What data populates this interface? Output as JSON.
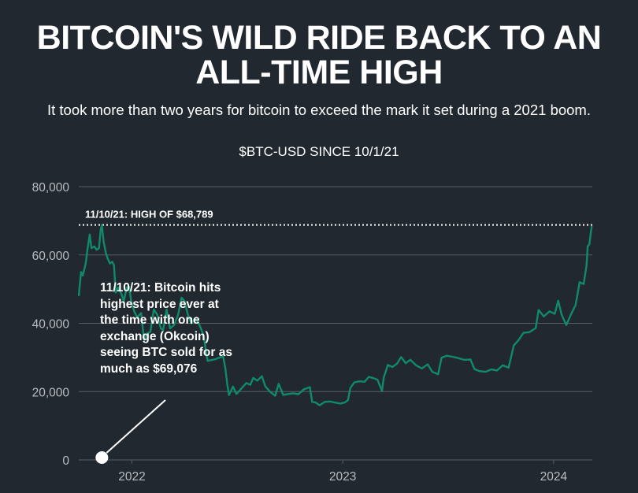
{
  "header": {
    "title": "BITCOIN'S WILD RIDE BACK TO AN ALL-TIME HIGH",
    "subtitle": "It took more than two years for bitcoin to exceed the mark it set during a 2021 boom.",
    "series_label": "$BTC-USD SINCE 10/1/21"
  },
  "colors": {
    "background": "#222830",
    "line": "#0f8a6c",
    "grid": "#5a5f66",
    "text": "#ffffff",
    "axis_text": "#b9bcc0"
  },
  "chart_data": {
    "type": "line",
    "title": "BITCOIN'S WILD RIDE BACK TO AN ALL-TIME HIGH",
    "subtitle": "$BTC-USD SINCE 10/1/21",
    "xlabel": "",
    "ylabel": "",
    "ylim": [
      0,
      80000
    ],
    "xlim": [
      "2021-10-01",
      "2024-03-08"
    ],
    "y_ticks": [
      "0",
      "20,000",
      "40,000",
      "60,000",
      "80,000"
    ],
    "y_tick_values": [
      0,
      20000,
      40000,
      60000,
      80000
    ],
    "x_ticks": [
      "2022",
      "2023",
      "2024"
    ],
    "x_tick_values": [
      "2022-01-01",
      "2023-01-01",
      "2024-01-01"
    ],
    "grid": true,
    "series": [
      {
        "name": "",
        "points": [
          [
            "2021-10-01",
            48000
          ],
          [
            "2021-10-05",
            55000
          ],
          [
            "2021-10-08",
            54000
          ],
          [
            "2021-10-13",
            57500
          ],
          [
            "2021-10-16",
            61500
          ],
          [
            "2021-10-20",
            66000
          ],
          [
            "2021-10-23",
            62000
          ],
          [
            "2021-10-28",
            62500
          ],
          [
            "2021-11-01",
            61500
          ],
          [
            "2021-11-05",
            62000
          ],
          [
            "2021-11-08",
            67500
          ],
          [
            "2021-11-10",
            68789
          ],
          [
            "2021-11-13",
            64000
          ],
          [
            "2021-11-17",
            60500
          ],
          [
            "2021-11-20",
            59000
          ],
          [
            "2021-11-24",
            57500
          ],
          [
            "2021-11-28",
            58000
          ],
          [
            "2021-12-01",
            57000
          ],
          [
            "2021-12-04",
            49000
          ],
          [
            "2021-12-08",
            50500
          ],
          [
            "2021-12-14",
            48500
          ],
          [
            "2021-12-18",
            46500
          ],
          [
            "2021-12-23",
            50500
          ],
          [
            "2021-12-27",
            50700
          ],
          [
            "2021-12-31",
            46300
          ],
          [
            "2022-01-05",
            43500
          ],
          [
            "2022-01-10",
            41800
          ],
          [
            "2022-01-17",
            43000
          ],
          [
            "2022-01-22",
            35000
          ],
          [
            "2022-01-27",
            37000
          ],
          [
            "2022-02-02",
            37500
          ],
          [
            "2022-02-08",
            44000
          ],
          [
            "2022-02-14",
            42500
          ],
          [
            "2022-02-20",
            38500
          ],
          [
            "2022-02-24",
            38000
          ],
          [
            "2022-03-02",
            44000
          ],
          [
            "2022-03-08",
            38500
          ],
          [
            "2022-03-15",
            39500
          ],
          [
            "2022-03-22",
            42500
          ],
          [
            "2022-03-28",
            47500
          ],
          [
            "2022-04-02",
            46500
          ],
          [
            "2022-04-08",
            42500
          ],
          [
            "2022-04-14",
            40000
          ],
          [
            "2022-04-21",
            41500
          ],
          [
            "2022-04-28",
            39500
          ],
          [
            "2022-05-05",
            36500
          ],
          [
            "2022-05-10",
            31000
          ],
          [
            "2022-05-12",
            29000
          ],
          [
            "2022-05-18",
            29200
          ],
          [
            "2022-05-26",
            29500
          ],
          [
            "2022-06-02",
            30000
          ],
          [
            "2022-06-08",
            30200
          ],
          [
            "2022-06-12",
            26500
          ],
          [
            "2022-06-15",
            22200
          ],
          [
            "2022-06-18",
            19000
          ],
          [
            "2022-06-25",
            21500
          ],
          [
            "2022-07-01",
            19300
          ],
          [
            "2022-07-10",
            21000
          ],
          [
            "2022-07-18",
            22500
          ],
          [
            "2022-07-25",
            22000
          ],
          [
            "2022-07-30",
            24000
          ],
          [
            "2022-08-06",
            23200
          ],
          [
            "2022-08-14",
            24500
          ],
          [
            "2022-08-20",
            21500
          ],
          [
            "2022-08-28",
            20000
          ],
          [
            "2022-09-06",
            18800
          ],
          [
            "2022-09-12",
            22300
          ],
          [
            "2022-09-20",
            19000
          ],
          [
            "2022-09-28",
            19300
          ],
          [
            "2022-10-08",
            19500
          ],
          [
            "2022-10-16",
            19200
          ],
          [
            "2022-10-26",
            20700
          ],
          [
            "2022-11-05",
            21300
          ],
          [
            "2022-11-09",
            17000
          ],
          [
            "2022-11-15",
            16800
          ],
          [
            "2022-11-22",
            16000
          ],
          [
            "2022-12-01",
            17000
          ],
          [
            "2022-12-10",
            17100
          ],
          [
            "2022-12-18",
            16800
          ],
          [
            "2022-12-28",
            16500
          ],
          [
            "2023-01-05",
            16850
          ],
          [
            "2023-01-10",
            17500
          ],
          [
            "2023-01-14",
            21000
          ],
          [
            "2023-01-21",
            22700
          ],
          [
            "2023-01-30",
            23000
          ],
          [
            "2023-02-08",
            22900
          ],
          [
            "2023-02-15",
            24300
          ],
          [
            "2023-02-22",
            24000
          ],
          [
            "2023-03-02",
            23500
          ],
          [
            "2023-03-10",
            20200
          ],
          [
            "2023-03-13",
            24100
          ],
          [
            "2023-03-20",
            27800
          ],
          [
            "2023-03-28",
            27200
          ],
          [
            "2023-04-05",
            28200
          ],
          [
            "2023-04-12",
            30100
          ],
          [
            "2023-04-20",
            28300
          ],
          [
            "2023-04-28",
            29300
          ],
          [
            "2023-05-08",
            27700
          ],
          [
            "2023-05-18",
            26800
          ],
          [
            "2023-05-28",
            28000
          ],
          [
            "2023-06-05",
            25800
          ],
          [
            "2023-06-15",
            25100
          ],
          [
            "2023-06-21",
            29900
          ],
          [
            "2023-06-30",
            30500
          ],
          [
            "2023-07-10",
            30200
          ],
          [
            "2023-07-20",
            29800
          ],
          [
            "2023-07-30",
            29300
          ],
          [
            "2023-08-10",
            29400
          ],
          [
            "2023-08-17",
            26600
          ],
          [
            "2023-08-25",
            26000
          ],
          [
            "2023-09-05",
            25800
          ],
          [
            "2023-09-15",
            26500
          ],
          [
            "2023-09-25",
            26200
          ],
          [
            "2023-10-05",
            27700
          ],
          [
            "2023-10-15",
            27000
          ],
          [
            "2023-10-24",
            33500
          ],
          [
            "2023-11-01",
            35000
          ],
          [
            "2023-11-10",
            37200
          ],
          [
            "2023-11-20",
            37400
          ],
          [
            "2023-12-01",
            38600
          ],
          [
            "2023-12-06",
            43900
          ],
          [
            "2023-12-15",
            42000
          ],
          [
            "2023-12-25",
            43500
          ],
          [
            "2024-01-03",
            42800
          ],
          [
            "2024-01-09",
            46600
          ],
          [
            "2024-01-15",
            42500
          ],
          [
            "2024-01-23",
            39500
          ],
          [
            "2024-01-31",
            42600
          ],
          [
            "2024-02-08",
            45300
          ],
          [
            "2024-02-15",
            52000
          ],
          [
            "2024-02-22",
            51500
          ],
          [
            "2024-02-27",
            57000
          ],
          [
            "2024-02-29",
            62500
          ],
          [
            "2024-03-03",
            63200
          ],
          [
            "2024-03-05",
            66000
          ],
          [
            "2024-03-07",
            68500
          ]
        ]
      }
    ],
    "reference_line": {
      "value": 68789,
      "label": "11/10/21: HIGH OF $68,789"
    },
    "annotation": {
      "date": "2021-11-10",
      "value": 0,
      "text": "11/10/21: Bitcoin hits highest price ever at the time with one exchange (Okcoin) seeing BTC sold for as much as $69,076"
    }
  }
}
